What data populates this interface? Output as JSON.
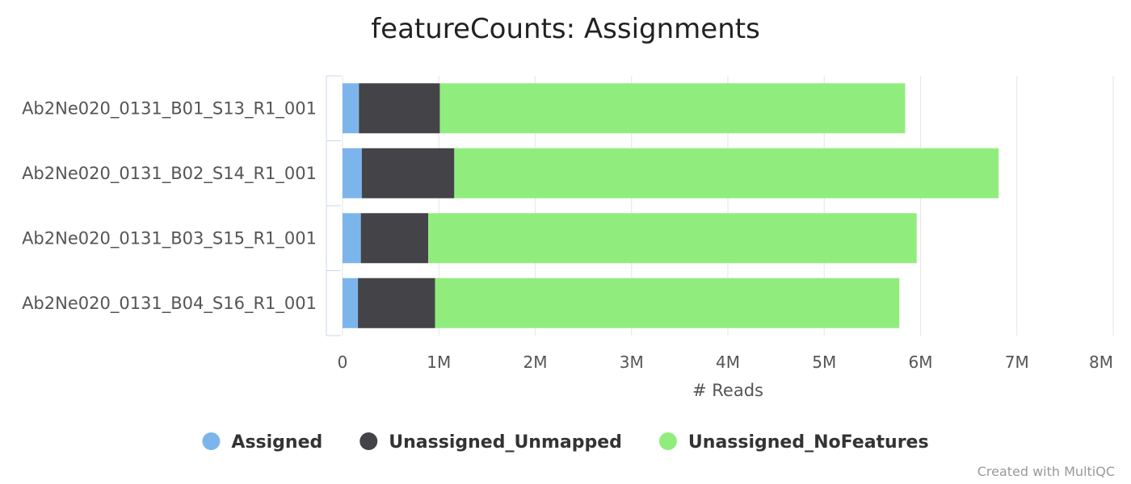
{
  "chart_data": {
    "type": "bar",
    "orientation": "horizontal",
    "stacked": true,
    "title": "featureCounts: Assignments",
    "xlabel": "# Reads",
    "ylabel": "",
    "xlim": [
      0,
      8000000
    ],
    "x_ticks": [
      0,
      1000000,
      2000000,
      3000000,
      4000000,
      5000000,
      6000000,
      7000000,
      8000000
    ],
    "x_tick_labels": [
      "0",
      "1M",
      "2M",
      "3M",
      "4M",
      "5M",
      "6M",
      "7M",
      "8M"
    ],
    "grid": true,
    "legend_position": "bottom",
    "categories": [
      "Ab2Ne020_0131_B01_S13_R1_001",
      "Ab2Ne020_0131_B02_S14_R1_001",
      "Ab2Ne020_0131_B03_S15_R1_001",
      "Ab2Ne020_0131_B04_S16_R1_001"
    ],
    "series": [
      {
        "name": "Assigned",
        "color": "#7cb5ec",
        "values": [
          170000,
          200000,
          190000,
          160000
        ]
      },
      {
        "name": "Unassigned_Unmapped",
        "color": "#434348",
        "values": [
          840000,
          960000,
          700000,
          800000
        ]
      },
      {
        "name": "Unassigned_NoFeatures",
        "color": "#90ed7d",
        "values": [
          4830000,
          5650000,
          5070000,
          4820000
        ]
      }
    ]
  },
  "credits": "Created with MultiQC"
}
